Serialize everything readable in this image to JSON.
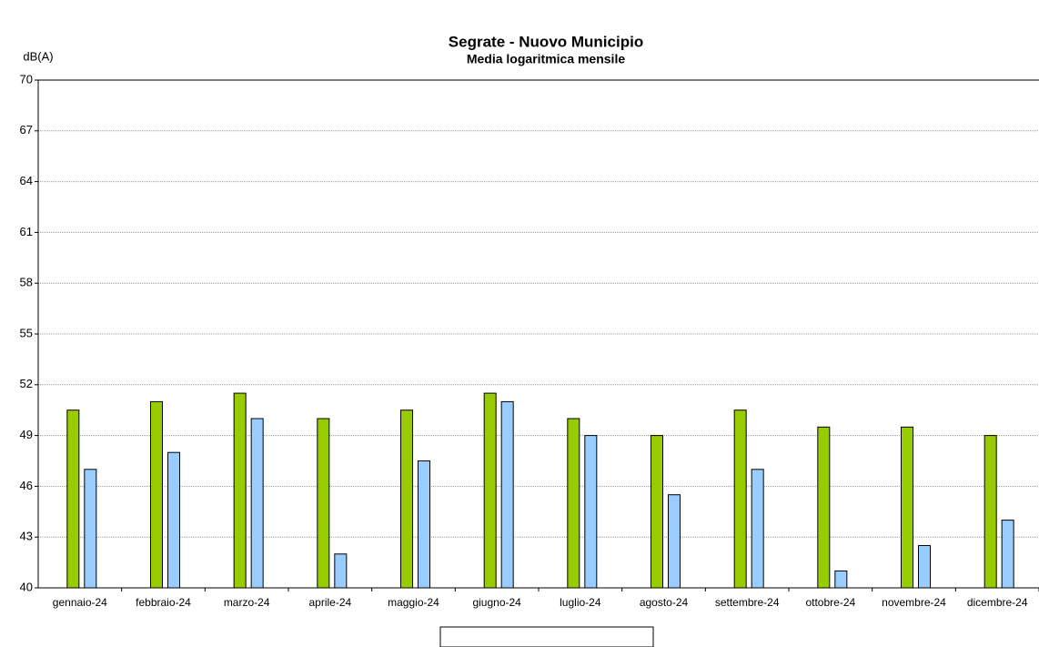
{
  "chart_data": {
    "type": "bar",
    "title": "Segrate - Nuovo Municipio",
    "subtitle": "Media logaritmica mensile",
    "y_label": "dB(A)",
    "categories": [
      "gennaio-24",
      "febbraio-24",
      "marzo-24",
      "aprile-24",
      "maggio-24",
      "giugno-24",
      "luglio-24",
      "agosto-24",
      "settembre-24",
      "ottobre-24",
      "novembre-24",
      "dicembre-24"
    ],
    "series": [
      {
        "color": "#99cc00",
        "values": [
          50.5,
          51,
          51.5,
          50,
          50.5,
          51.5,
          50,
          49,
          50.5,
          49.5,
          49.5,
          49
        ]
      },
      {
        "color": "#99ccff",
        "values": [
          47,
          48,
          50,
          42,
          47.5,
          51,
          49,
          45.5,
          47,
          41,
          42.5,
          44
        ]
      }
    ],
    "ylim": [
      40,
      70
    ],
    "yticks": [
      40,
      43,
      46,
      49,
      52,
      55,
      58,
      61,
      64,
      67,
      70
    ],
    "grid": true
  }
}
